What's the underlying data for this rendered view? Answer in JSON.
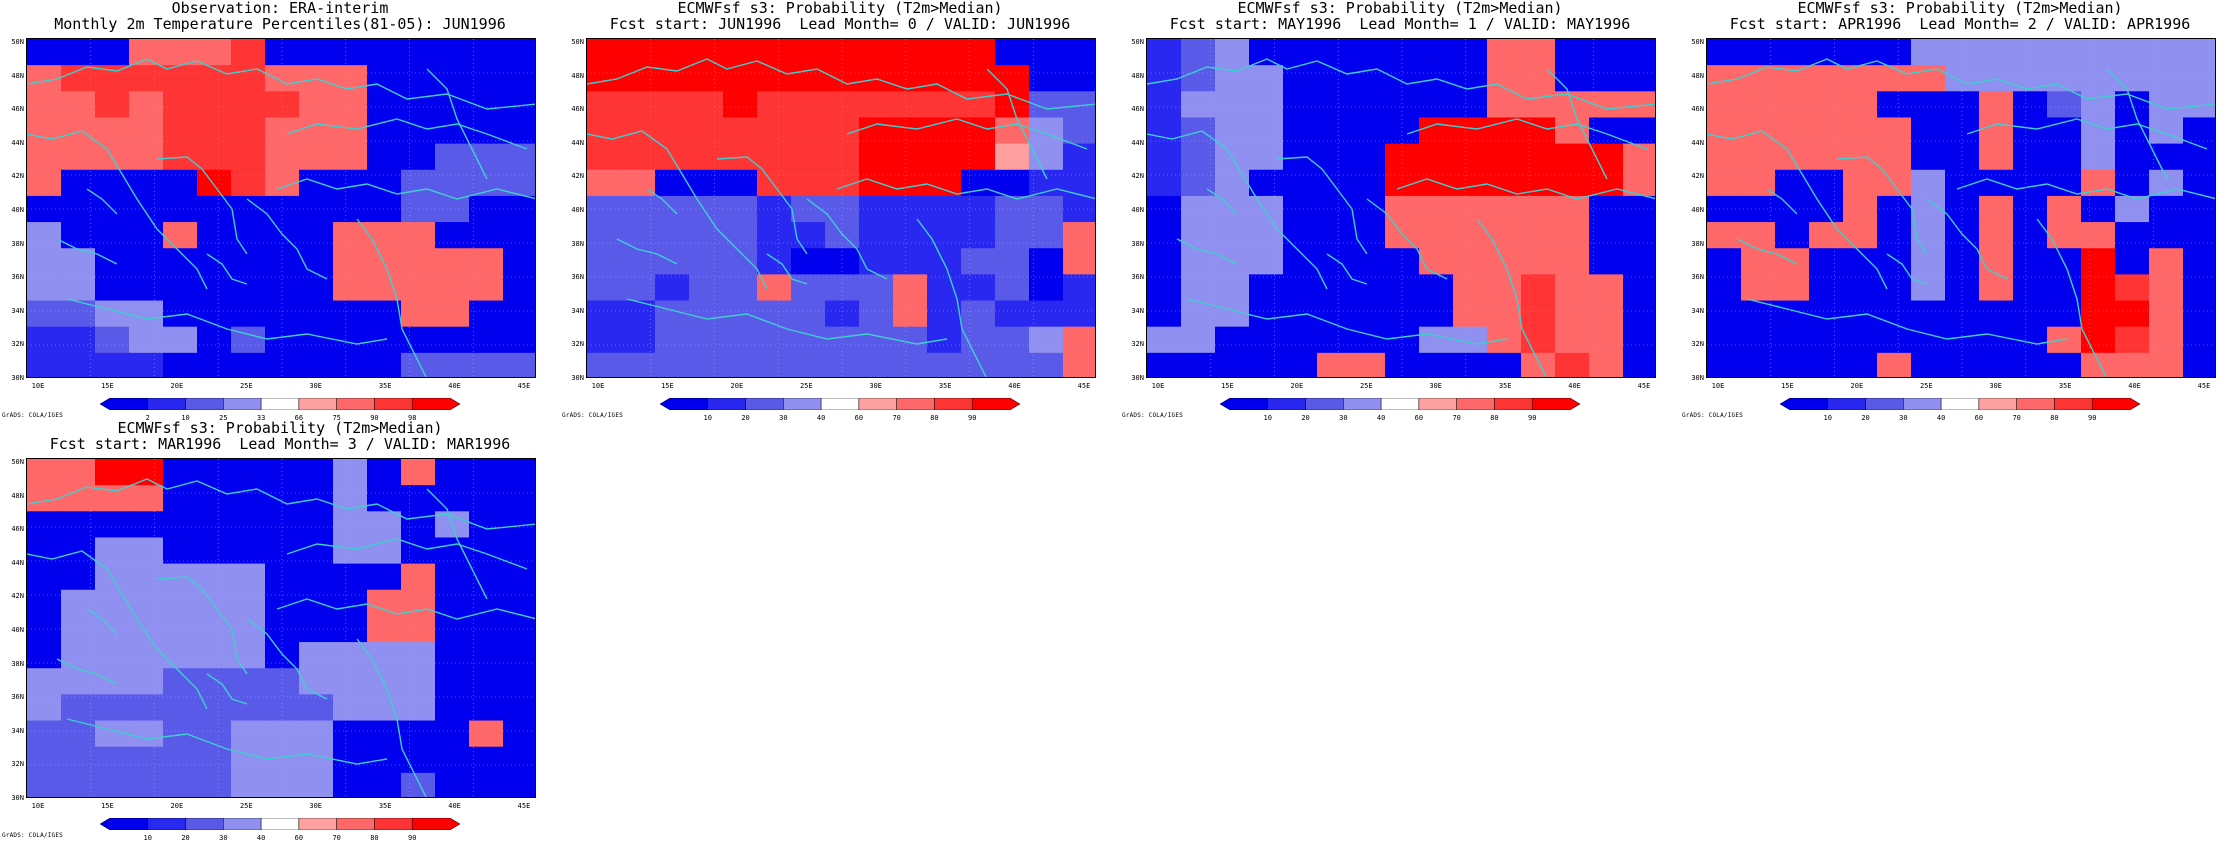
{
  "colors": {
    "coast": "#3fcfcf",
    "grid": "#aaaaaa",
    "scale": [
      "#0000ee",
      "#2828f0",
      "#5a5ae8",
      "#9090f0",
      "#ffffff",
      "#ffa0a0",
      "#ff6868",
      "#ff3434",
      "#ff0000"
    ]
  },
  "credit": "GrADS: COLA/IGES",
  "lat_labels": [
    "50N",
    "48N",
    "46N",
    "44N",
    "42N",
    "40N",
    "38N",
    "36N",
    "34N",
    "32N",
    "30N"
  ],
  "lon_labels": [
    "10E",
    "15E",
    "20E",
    "25E",
    "30E",
    "35E",
    "40E",
    "45E"
  ],
  "panels": [
    {
      "title1": "Observation: ERA-interim",
      "title2": "Monthly 2m Temperature Percentiles(81-05): JUN1996",
      "scale_labels": [
        "2",
        "10",
        "25",
        "33",
        "66",
        "75",
        "90",
        "98"
      ],
      "grid": [
        "000666700000000",
        "677777766600000",
        "667677776600000",
        "666677766600000",
        "666677766600222",
        "600008760002222",
        "000000000002200",
        "300060000666000",
        "330000000666660",
        "330000000666660",
        "223300000006600",
        "112330200000000",
        "111100000002222"
      ]
    },
    {
      "title1": "ECMWFsf s3: Probability (T2m>Median)",
      "title2": "Fcst start: JUN1996  Lead Month= 0 / VALID: JUN1996",
      "scale_labels": [
        "10",
        "20",
        "30",
        "40",
        "60",
        "70",
        "80",
        "90"
      ],
      "grid": [
        "888888888888000",
        "888888888888800",
        "777787777777822",
        "777777778888632",
        "777777778888531",
        "660007778880011",
        "222221221111221",
        "222221121111226",
        "222221001112206",
        "221226222611201",
        "112222212612111",
        "112222222212236",
        "222222222222226"
      ]
    },
    {
      "title1": "ECMWFsf s3: Probability (T2m>Median)",
      "title2": "Fcst start: MAY1996  Lead Month= 1 / VALID: MAY1996",
      "scale_labels": [
        "10",
        "20",
        "30",
        "40",
        "60",
        "70",
        "80",
        "90"
      ],
      "grid": [
        "123000000066000",
        "123300000066000",
        "133300000066666",
        "123300008888600",
        "123300088888886",
        "123000088888886",
        "033300066666600",
        "033300066666600",
        "033300006666600",
        "033000000667660",
        "033000000667660",
        "330000003367660",
        "000006600006760"
      ]
    },
    {
      "title1": "ECMWFsf s3: Probability (T2m>Median)",
      "title2": "Fcst start: APR1996  Lead Month= 2 / VALID: APR1996",
      "scale_labels": [
        "10",
        "20",
        "30",
        "40",
        "60",
        "70",
        "80",
        "90"
      ],
      "grid": [
        "000000333333333",
        "666666633333333",
        "666660006023033",
        "666666006003030",
        "666666006003000",
        "660066300006030",
        "000060306060300",
        "660660306066000",
        "066000306008060",
        "066000306008760",
        "000000000008860",
        "000000000068760",
        "000006000006660"
      ]
    },
    {
      "title1": "ECMWFsf s3: Probability (T2m>Median)",
      "title2": "Fcst start: MAR1996  Lead Month= 3 / VALID: MAR1996",
      "scale_labels": [
        "10",
        "20",
        "30",
        "40",
        "60",
        "70",
        "80",
        "90"
      ],
      "grid": [
        "668800000306000",
        "666600000300000",
        "000000000330300",
        "003300000330000",
        "003333300006000",
        "033333300066000",
        "033333300066000",
        "033333303333000",
        "333322223333000",
        "322222222333000",
        "223322333000060",
        "222222333000000",
        "222222333002000"
      ]
    }
  ]
}
